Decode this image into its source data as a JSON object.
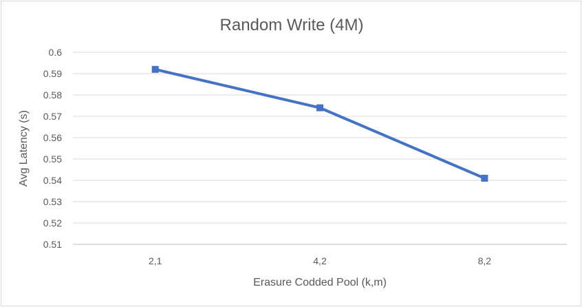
{
  "chart_data": {
    "type": "line",
    "title": "Random Write (4M)",
    "xlabel": "Erasure Codded Pool (k,m)",
    "ylabel": "Avg Latency (s)",
    "categories": [
      "2,1",
      "4,2",
      "8,2"
    ],
    "series": [
      {
        "values": [
          0.592,
          0.574,
          0.541
        ],
        "color": "#4472c4",
        "marker": "square"
      }
    ],
    "ylim": [
      0.51,
      0.6
    ],
    "yticks": [
      "0.51",
      "0.52",
      "0.53",
      "0.54",
      "0.55",
      "0.56",
      "0.57",
      "0.58",
      "0.59",
      "0.6"
    ],
    "grid": true,
    "legend": "none"
  }
}
